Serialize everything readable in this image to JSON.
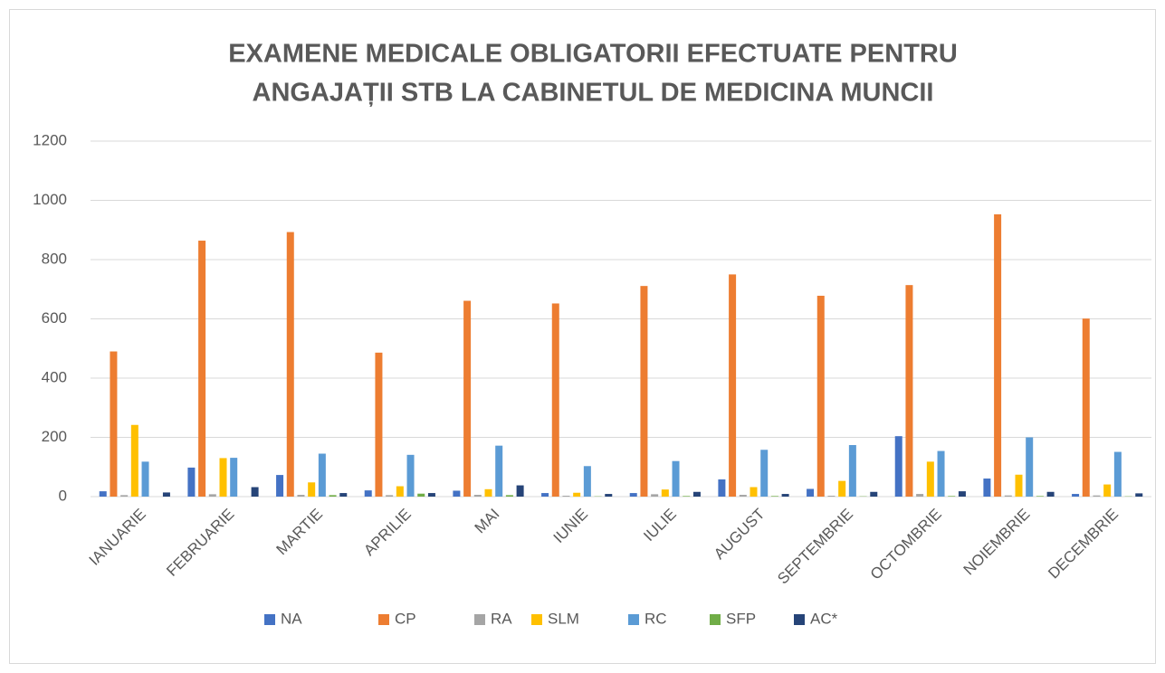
{
  "chart_data": {
    "type": "bar",
    "title": [
      "EXAMENE MEDICALE OBLIGATORII EFECTUATE PENTRU",
      "ANGAJAȚII STB LA CABINETUL DE MEDICINA MUNCII"
    ],
    "categories": [
      "IANUARIE",
      "FEBRUARIE",
      "MARTIE",
      "APRILIE",
      "MAI",
      "IUNIE",
      "IULIE",
      "AUGUST",
      "SEPTEMBRIE",
      "OCTOMBRIE",
      "NOIEMBRIE",
      "DECEMBRIE"
    ],
    "series": [
      {
        "name": "NA",
        "color": "#4472c4",
        "values": [
          18,
          98,
          73,
          21,
          20,
          12,
          12,
          58,
          26,
          204,
          61,
          9
        ]
      },
      {
        "name": "CP",
        "color": "#ed7d31",
        "values": [
          490,
          864,
          893,
          486,
          661,
          652,
          711,
          750,
          678,
          714,
          953,
          601
        ]
      },
      {
        "name": "RA",
        "color": "#a5a5a5",
        "values": [
          5,
          8,
          6,
          5,
          6,
          3,
          8,
          6,
          3,
          9,
          4,
          4
        ]
      },
      {
        "name": "SLM",
        "color": "#ffc000",
        "values": [
          242,
          130,
          48,
          35,
          25,
          13,
          24,
          32,
          53,
          118,
          74,
          41
        ]
      },
      {
        "name": "RC",
        "color": "#5b9bd5",
        "values": [
          118,
          131,
          145,
          141,
          172,
          103,
          120,
          158,
          174,
          154,
          200,
          151
        ]
      },
      {
        "name": "SFP",
        "color": "#70ad47",
        "values": [
          0,
          0,
          5,
          10,
          5,
          1,
          2,
          2,
          1,
          2,
          2,
          1
        ]
      },
      {
        "name": "AC*",
        "color": "#264478",
        "values": [
          14,
          32,
          12,
          12,
          38,
          9,
          16,
          9,
          16,
          18,
          16,
          11
        ]
      }
    ],
    "ylim": [
      0,
      1200
    ],
    "yticks": [
      0,
      200,
      400,
      600,
      800,
      1000,
      1200
    ],
    "grid": true,
    "legend": "bottom"
  }
}
